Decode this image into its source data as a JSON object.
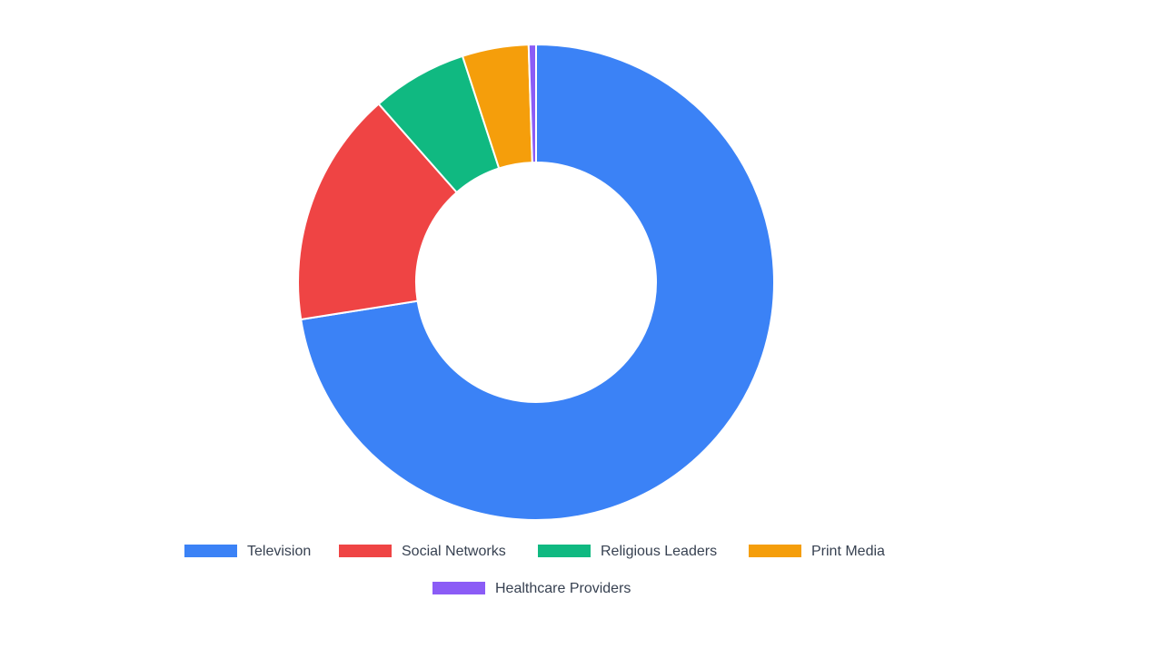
{
  "chart_data": {
    "type": "pie",
    "donut": true,
    "categories": [
      "Television",
      "Social Networks",
      "Religious Leaders",
      "Print Media",
      "Healthcare Providers"
    ],
    "values": [
      72.5,
      16.0,
      6.5,
      4.5,
      0.5
    ],
    "colors": [
      "#3b82f6",
      "#ef4444",
      "#10b981",
      "#f59e0b",
      "#8b5cf6"
    ],
    "title": "",
    "legend": {
      "position": "bottom",
      "entries": [
        "Television",
        "Social Networks",
        "Religious Leaders",
        "Print Media",
        "Healthcare Providers"
      ]
    }
  }
}
